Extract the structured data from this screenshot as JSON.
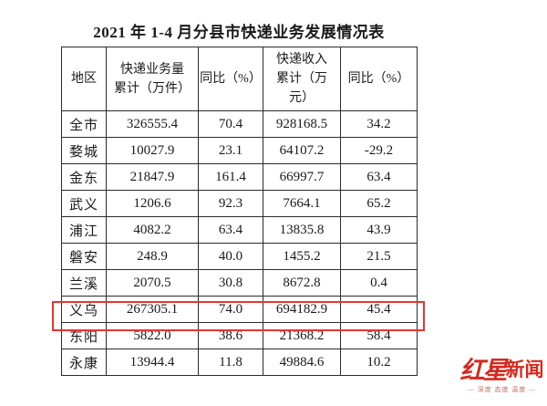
{
  "chart_data": {
    "type": "table",
    "title": "2021 年 1-4 月分县市快递业务发展情况表",
    "columns": [
      "地区",
      "快递业务量\n累计（万件）",
      "同比（%）",
      "快递收入\n累计（万\n元）",
      "同比（%）"
    ],
    "rows": [
      [
        "全市",
        "326555.4",
        "70.4",
        "928168.5",
        "34.2"
      ],
      [
        "婺城",
        "10027.9",
        "23.1",
        "64107.2",
        "-29.2"
      ],
      [
        "金东",
        "21847.9",
        "161.4",
        "66997.7",
        "63.4"
      ],
      [
        "武义",
        "1206.6",
        "92.3",
        "7664.1",
        "65.2"
      ],
      [
        "浦江",
        "4082.2",
        "63.4",
        "13835.8",
        "43.9"
      ],
      [
        "磐安",
        "248.9",
        "40.0",
        "1455.2",
        "21.5"
      ],
      [
        "兰溪",
        "2070.5",
        "30.8",
        "8672.8",
        "0.4"
      ],
      [
        "义乌",
        "267305.1",
        "74.0",
        "694182.9",
        "45.4"
      ],
      [
        "东阳",
        "5822.0",
        "38.6",
        "21368.2",
        "58.4"
      ],
      [
        "永康",
        "13944.4",
        "11.8",
        "49884.6",
        "10.2"
      ]
    ],
    "highlighted_row": "义乌",
    "highlight_color": "#e8362e",
    "layout_hints": "plain black-bordered grid, all cells centered, header row taller with wrapped labels"
  },
  "watermark": {
    "logo_part1": "红星",
    "logo_part2": "新闻",
    "tagline": "— 深度 态度 温度 —",
    "color": "#d6281e"
  }
}
